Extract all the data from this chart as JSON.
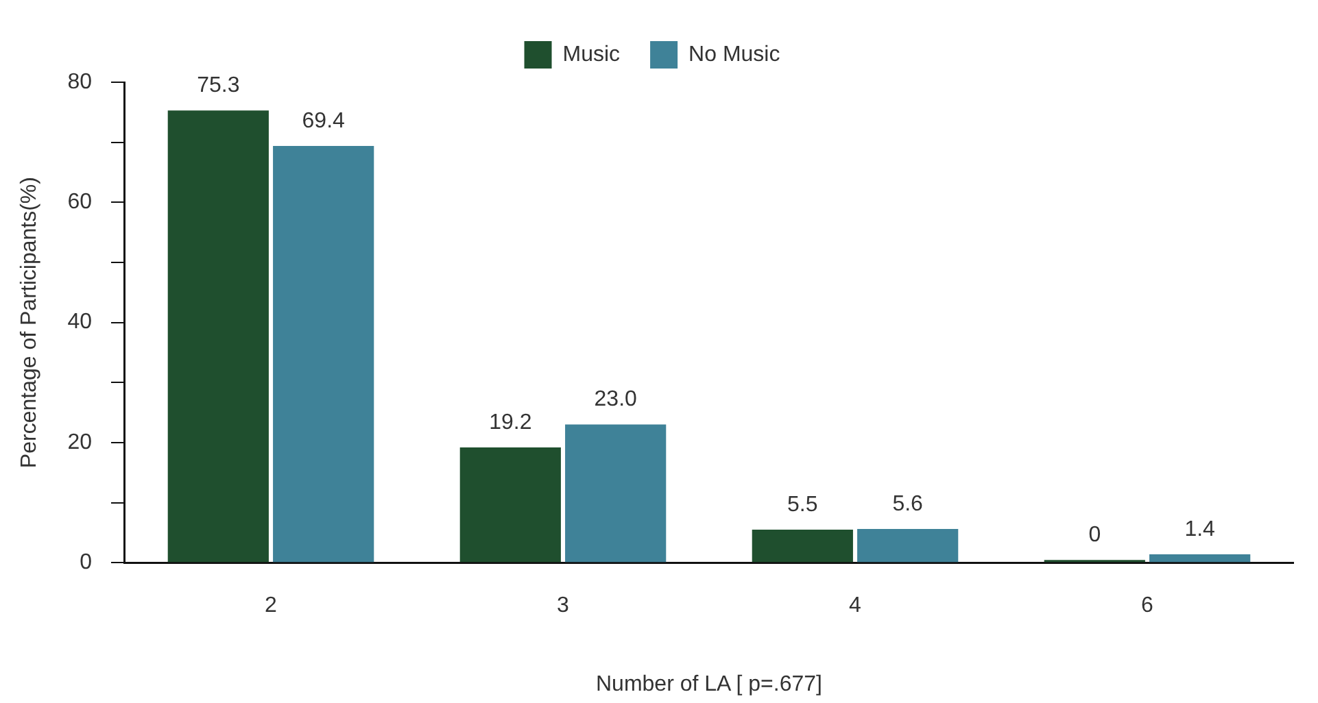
{
  "chart_data": {
    "type": "bar",
    "xlabel": "Number of LA [ p=.677]",
    "ylabel": "Percentage of Participants(%)",
    "categories": [
      "2",
      "3",
      "4",
      "6"
    ],
    "series": [
      {
        "name": "Music",
        "color": "#1f4f2e",
        "values": [
          75.3,
          19.2,
          5.5,
          0
        ],
        "value_labels": [
          "75.3",
          "19.2",
          "5.5",
          "0"
        ]
      },
      {
        "name": "No Music",
        "color": "#3f8298",
        "values": [
          69.4,
          23.0,
          5.6,
          1.4
        ],
        "value_labels": [
          "69.4",
          "23.0",
          "5.6",
          "1.4"
        ]
      }
    ],
    "ylim": [
      0,
      80
    ],
    "yticks": [
      0,
      {
        "value": 10,
        "label": null
      },
      20,
      {
        "value": 30,
        "label": null
      },
      40,
      {
        "value": 50,
        "label": null
      },
      60,
      {
        "value": 70,
        "label": null
      },
      80
    ],
    "legend": "top"
  }
}
